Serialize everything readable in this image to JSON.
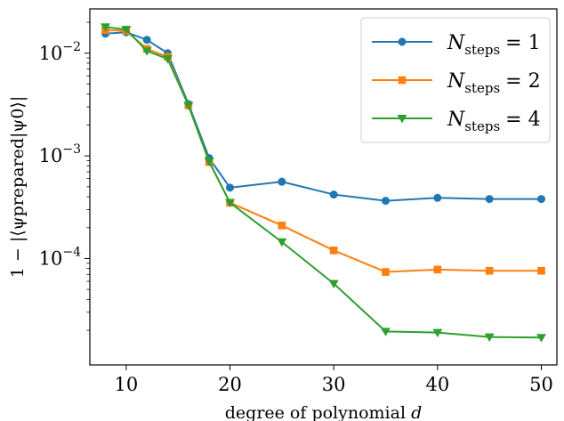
{
  "chart_data": {
    "type": "line",
    "xlabel_prefix": "degree of polynomial",
    "xlabel_var": "d",
    "ylabel": "1 − |⟨ψprepared|ψ0⟩|",
    "y_scale": "log",
    "xlim": [
      6.5,
      51.5
    ],
    "ylim": [
      9.2e-06,
      0.027
    ],
    "x_ticks": [
      10,
      20,
      30,
      40,
      50
    ],
    "y_ticks": [
      {
        "value": 0.01,
        "base": "10",
        "exp": "−2"
      },
      {
        "value": 0.001,
        "base": "10",
        "exp": "−3"
      },
      {
        "value": 0.0001,
        "base": "10",
        "exp": "−4"
      }
    ],
    "grid": false,
    "legend_position": "top-right",
    "series": [
      {
        "name": "N_steps = 1",
        "legend_var": "N",
        "legend_sub": "steps",
        "legend_eq": "= 1",
        "color": "#1f77b4",
        "marker": "circle",
        "x": [
          8,
          10,
          12,
          14,
          16,
          18,
          20,
          25,
          30,
          35,
          40,
          45,
          50
        ],
        "y": [
          0.0155,
          0.016,
          0.0135,
          0.01,
          0.0032,
          0.00095,
          0.00049,
          0.00056,
          0.00042,
          0.000365,
          0.00039,
          0.00038,
          0.00038
        ]
      },
      {
        "name": "N_steps = 2",
        "legend_var": "N",
        "legend_sub": "steps",
        "legend_eq": "= 2",
        "color": "#ff7f0e",
        "marker": "square",
        "x": [
          8,
          10,
          12,
          14,
          16,
          18,
          20,
          25,
          30,
          35,
          40,
          45,
          50
        ],
        "y": [
          0.0168,
          0.0165,
          0.011,
          0.0092,
          0.0031,
          0.00087,
          0.00035,
          0.00021,
          0.00012,
          7.4e-05,
          7.8e-05,
          7.6e-05,
          7.6e-05
        ]
      },
      {
        "name": "N_steps = 4",
        "legend_var": "N",
        "legend_sub": "steps",
        "legend_eq": "= 4",
        "color": "#2ca02c",
        "marker": "triangle-down",
        "x": [
          8,
          10,
          12,
          14,
          16,
          18,
          20,
          25,
          30,
          35,
          40,
          45,
          50
        ],
        "y": [
          0.018,
          0.017,
          0.0105,
          0.0088,
          0.0031,
          0.00088,
          0.00035,
          0.000145,
          5.7e-05,
          1.95e-05,
          1.9e-05,
          1.72e-05,
          1.7e-05
        ]
      }
    ]
  }
}
